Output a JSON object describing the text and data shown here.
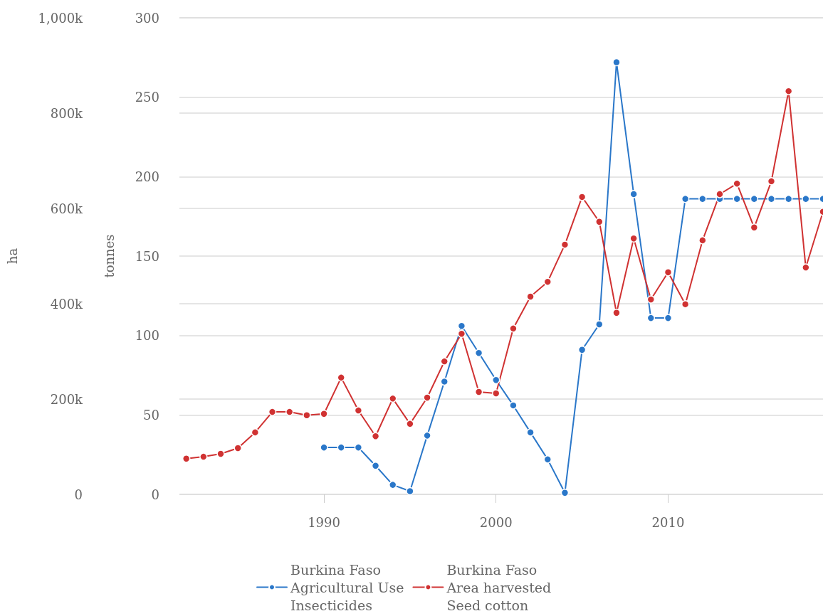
{
  "chart_data": {
    "type": "line",
    "ylabel": "ha",
    "y2label": "tonnes",
    "x": [
      1982,
      1983,
      1984,
      1985,
      1986,
      1987,
      1988,
      1989,
      1990,
      1991,
      1992,
      1993,
      1994,
      1995,
      1996,
      1997,
      1998,
      1999,
      2000,
      2001,
      2002,
      2003,
      2004,
      2005,
      2006,
      2007,
      2008,
      2009,
      2010,
      2011,
      2012,
      2013,
      2014,
      2015,
      2016,
      2017,
      2018,
      2019
    ],
    "series": [
      {
        "name": "Burkina Faso\nAgricultural Use\nInsecticides",
        "color": "#2a77c9",
        "axis": "y2",
        "values": [
          null,
          null,
          null,
          null,
          null,
          null,
          null,
          null,
          29.5,
          29.5,
          29.5,
          18,
          6,
          2,
          37,
          71,
          106,
          89,
          72,
          56,
          39,
          22,
          1,
          91,
          107,
          272,
          189,
          111,
          111,
          186,
          186,
          186,
          186,
          186,
          186,
          186,
          186,
          186
        ]
      },
      {
        "name": "Burkina Faso\nArea harvested\nSeed cotton",
        "color": "#d03232",
        "axis": "y",
        "values": [
          75000,
          79000,
          85000,
          97000,
          130000,
          173000,
          173000,
          166000,
          169000,
          245000,
          176000,
          122000,
          201000,
          148000,
          203000,
          279000,
          337000,
          215000,
          212000,
          348000,
          415000,
          446000,
          524000,
          624000,
          572000,
          381000,
          537000,
          409000,
          466000,
          399000,
          533000,
          630000,
          652000,
          560000,
          657000,
          846000,
          476000,
          593000
        ]
      }
    ],
    "xlim": [
      1981.6,
      2019
    ],
    "xticks": [
      1990,
      2000,
      2010
    ],
    "ylim": [
      0,
      1000000
    ],
    "yticks": [
      0,
      {
        "value": 200000,
        "label": "200k"
      },
      {
        "value": 400000,
        "label": "400k"
      },
      {
        "value": 600000,
        "label": "600k"
      },
      {
        "value": 800000,
        "label": "800k"
      },
      {
        "value": 1000000,
        "label": "1,000k"
      }
    ],
    "y2lim": [
      0,
      300
    ],
    "y2ticks": [
      0,
      50,
      100,
      150,
      200,
      250,
      300
    ],
    "grid": "y",
    "legend": "bottom",
    "marker": "circle",
    "line_style": "solid"
  }
}
